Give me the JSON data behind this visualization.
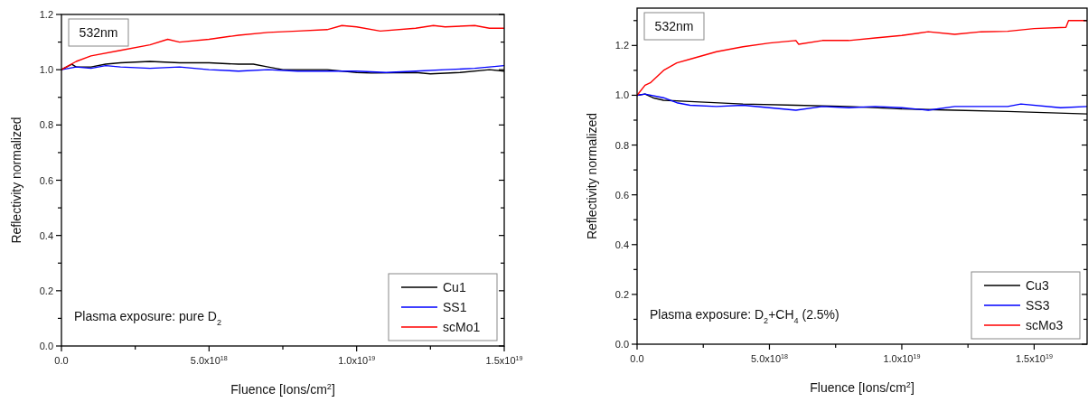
{
  "chart_data": [
    {
      "type": "line",
      "xlabel": "Fluence [Ions/cm$^{2}$]",
      "ylabel": "Reflectivity normalized",
      "legend": "bottom right",
      "grid": false,
      "marker": "none",
      "line_style": "solid",
      "xlim": [
        0,
        1.5e+19
      ],
      "ylim": [
        0,
        1.2
      ],
      "xticks": [
        {
          "value": 0,
          "label": "0.0"
        },
        {
          "value": 2.5e+18,
          "label": null
        },
        {
          "value": 5e+18,
          "label": "5.0x10$^{18}$"
        },
        {
          "value": 7.5e+18,
          "label": null
        },
        {
          "value": 1e+19,
          "label": "1.0x10$^{19}$"
        },
        {
          "value": 1.25e+19,
          "label": null
        },
        {
          "value": 1.5e+19,
          "label": "1.5x10$^{19}$"
        }
      ],
      "yticks": [
        {
          "value": 0,
          "label": "0.0"
        },
        {
          "value": 0.1,
          "label": null
        },
        {
          "value": 0.2,
          "label": "0.2"
        },
        {
          "value": 0.3,
          "label": null
        },
        {
          "value": 0.4,
          "label": "0.4"
        },
        {
          "value": 0.5,
          "label": null
        },
        {
          "value": 0.6,
          "label": "0.6"
        },
        {
          "value": 0.7,
          "label": null
        },
        {
          "value": 0.8,
          "label": "0.8"
        },
        {
          "value": 0.9,
          "label": null
        },
        {
          "value": 1.0,
          "label": "1.0"
        },
        {
          "value": 1.1,
          "label": null
        },
        {
          "value": 1.2,
          "label": "1.2"
        }
      ],
      "annotations": [
        "532nm",
        "Plasma exposure: pure D$_{2}$"
      ],
      "series": [
        {
          "name": "Cu1",
          "color": "#000000",
          "x": [
            0,
            3.5e+17,
            5e+17,
            1e+18,
            1.5e+18,
            2e+18,
            3e+18,
            4e+18,
            5e+18,
            6e+18,
            6.5e+18,
            7e+18,
            7.5e+18,
            9e+18,
            1e+19,
            1.05e+19,
            1.2e+19,
            1.25e+19,
            1.35e+19,
            1.45e+19,
            1.5e+19
          ],
          "values": [
            1.0,
            1.02,
            1.01,
            1.01,
            1.02,
            1.025,
            1.03,
            1.025,
            1.025,
            1.02,
            1.02,
            1.01,
            1.0,
            1.0,
            0.99,
            0.988,
            0.99,
            0.985,
            0.99,
            1.0,
            0.995
          ]
        },
        {
          "name": "SS1",
          "color": "#0000ff",
          "x": [
            0,
            5e+17,
            1e+18,
            1.5e+18,
            2e+18,
            3e+18,
            4e+18,
            5e+18,
            6e+18,
            7e+18,
            8e+18,
            9e+18,
            1e+19,
            1.1e+19,
            1.2e+19,
            1.3e+19,
            1.4e+19,
            1.5e+19
          ],
          "values": [
            1.0,
            1.01,
            1.005,
            1.015,
            1.01,
            1.005,
            1.01,
            1.0,
            0.995,
            1.0,
            0.995,
            0.995,
            0.995,
            0.99,
            0.995,
            1.0,
            1.005,
            1.015
          ]
        },
        {
          "name": "scMo1",
          "color": "#ff0000",
          "x": [
            0,
            5e+17,
            1e+18,
            2e+18,
            3e+18,
            3.6e+18,
            4e+18,
            5e+18,
            6e+18,
            7e+18,
            8e+18,
            9e+18,
            9.5e+18,
            1e+19,
            1.08e+19,
            1.2e+19,
            1.26e+19,
            1.3e+19,
            1.4e+19,
            1.45e+19,
            1.5e+19
          ],
          "values": [
            1.0,
            1.03,
            1.05,
            1.07,
            1.09,
            1.11,
            1.1,
            1.11,
            1.125,
            1.135,
            1.14,
            1.145,
            1.16,
            1.155,
            1.14,
            1.15,
            1.16,
            1.155,
            1.16,
            1.15,
            1.15
          ]
        }
      ]
    },
    {
      "type": "line",
      "xlabel": "Fluence [Ions/cm$^{2}$]",
      "ylabel": "Reflectivity normalized",
      "legend": "bottom right",
      "grid": false,
      "marker": "none",
      "line_style": "solid",
      "xlim": [
        0,
        1.7e+19
      ],
      "ylim": [
        0,
        1.35
      ],
      "xticks": [
        {
          "value": 0,
          "label": "0.0"
        },
        {
          "value": 2.5e+18,
          "label": null
        },
        {
          "value": 5e+18,
          "label": "5.0x10$^{18}$"
        },
        {
          "value": 7.5e+18,
          "label": null
        },
        {
          "value": 1e+19,
          "label": "1.0x10$^{19}$"
        },
        {
          "value": 1.25e+19,
          "label": null
        },
        {
          "value": 1.5e+19,
          "label": "1.5x10$^{19}$"
        }
      ],
      "yticks": [
        {
          "value": 0,
          "label": "0.0"
        },
        {
          "value": 0.1,
          "label": null
        },
        {
          "value": 0.2,
          "label": "0.2"
        },
        {
          "value": 0.3,
          "label": null
        },
        {
          "value": 0.4,
          "label": "0.4"
        },
        {
          "value": 0.5,
          "label": null
        },
        {
          "value": 0.6,
          "label": "0.6"
        },
        {
          "value": 0.7,
          "label": null
        },
        {
          "value": 0.8,
          "label": "0.8"
        },
        {
          "value": 0.9,
          "label": null
        },
        {
          "value": 1.0,
          "label": "1.0"
        },
        {
          "value": 1.1,
          "label": null
        },
        {
          "value": 1.2,
          "label": "1.2"
        },
        {
          "value": 1.3,
          "label": null
        }
      ],
      "annotations": [
        "532nm",
        "Plasma exposure: D$_{2}$+CH$_{4}$ (2.5%)"
      ],
      "series": [
        {
          "name": "Cu3",
          "color": "#000000",
          "x": [
            0,
            3e+17,
            6e+17,
            1e+18,
            2e+18,
            4e+18,
            6e+18,
            8e+18,
            1e+19,
            1.2e+19,
            1.4e+19,
            1.7e+19
          ],
          "values": [
            1.0,
            1.005,
            0.99,
            0.98,
            0.975,
            0.965,
            0.96,
            0.955,
            0.945,
            0.94,
            0.935,
            0.925
          ]
        },
        {
          "name": "SS3",
          "color": "#0000ff",
          "x": [
            0,
            3e+17,
            1e+18,
            1.5e+18,
            2e+18,
            3e+18,
            4e+18,
            5e+18,
            6e+18,
            7e+18,
            8e+18,
            9e+18,
            1e+19,
            1.1e+19,
            1.2e+19,
            1.4e+19,
            1.45e+19,
            1.6e+19,
            1.7e+19
          ],
          "values": [
            1.0,
            1.005,
            0.99,
            0.97,
            0.96,
            0.955,
            0.96,
            0.95,
            0.94,
            0.955,
            0.95,
            0.955,
            0.95,
            0.94,
            0.955,
            0.955,
            0.965,
            0.95,
            0.955
          ]
        },
        {
          "name": "scMo3",
          "color": "#ff0000",
          "x": [
            0,
            3e+17,
            5e+17,
            1e+18,
            1.5e+18,
            2e+18,
            3e+18,
            4e+18,
            5e+18,
            6e+18,
            6.1e+18,
            7e+18,
            8e+18,
            9e+18,
            1e+19,
            1.1e+19,
            1.2e+19,
            1.3e+19,
            1.4e+19,
            1.5e+19,
            1.62e+19,
            1.63e+19,
            1.7e+19
          ],
          "values": [
            1.0,
            1.04,
            1.05,
            1.1,
            1.13,
            1.145,
            1.175,
            1.195,
            1.21,
            1.22,
            1.205,
            1.22,
            1.22,
            1.23,
            1.24,
            1.255,
            1.245,
            1.255,
            1.257,
            1.268,
            1.273,
            1.3,
            1.3
          ]
        }
      ]
    }
  ]
}
